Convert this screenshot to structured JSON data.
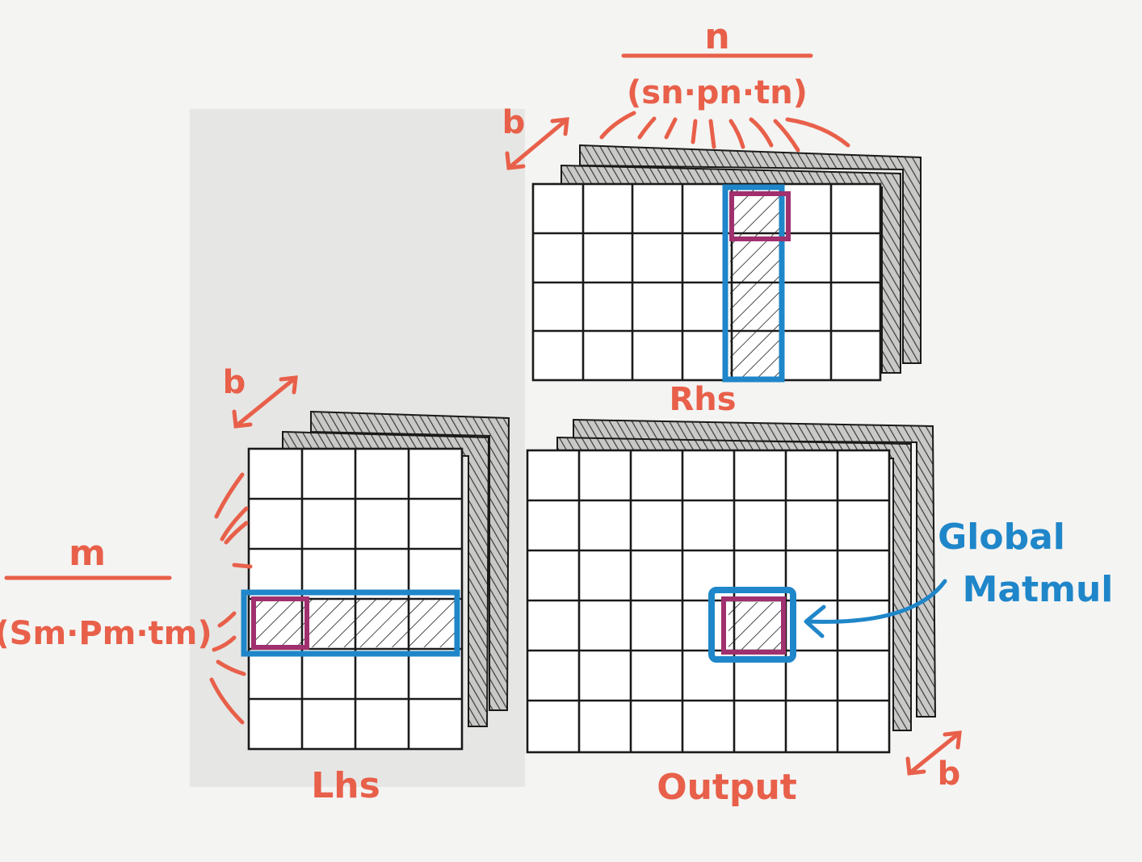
{
  "colors": {
    "paper": "#f4f4f2",
    "shade": "#e6e6e4",
    "ink": "#1a1a1a",
    "red": "#e8604a",
    "blue": "#1f86c9",
    "magenta": "#a0306e"
  },
  "rhs": {
    "label": "Rhs",
    "numerator": "n",
    "denominator": "(sn·pn·tn)",
    "batch": "b"
  },
  "lhs": {
    "label": "Lhs",
    "numerator": "m",
    "denominator": "(Sm·Pm·tm)",
    "batch": "b"
  },
  "output": {
    "label": "Output",
    "batch": "b"
  },
  "annotation": {
    "line1": "Global",
    "line2": "Matmul"
  }
}
